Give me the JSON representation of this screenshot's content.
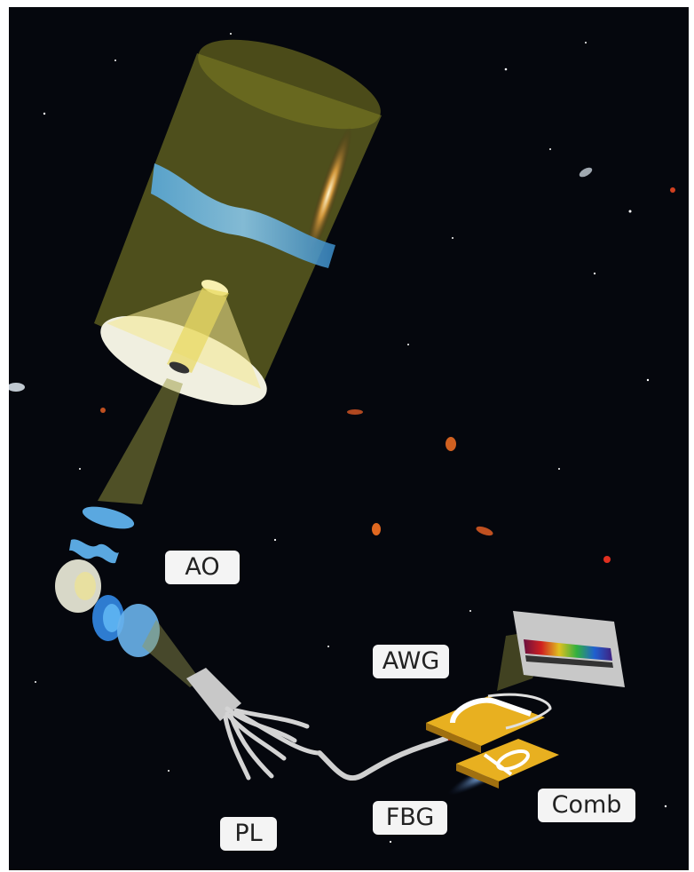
{
  "labels": {
    "ao": "AO",
    "awg": "AWG",
    "pl": "PL",
    "fbg": "FBG",
    "comb": "Comb"
  },
  "colors": {
    "background": "#05070d",
    "telescope_tube": "#8a8a2a",
    "light_beam": "#d8d070",
    "wavefront": "#4aa0d8",
    "chip": "#e8b020",
    "fiber": "#d0d0d0",
    "label_bg": "#f4f4f4"
  },
  "icons": [
    "telescope-tube",
    "mirror",
    "turbulent-wavefront",
    "galaxy",
    "adaptive-optics-lenses",
    "photonic-lantern",
    "fiber",
    "fiber-bragg-grating",
    "arrayed-waveguide-grating-chip",
    "frequency-comb-chip",
    "spectrum-detector"
  ]
}
